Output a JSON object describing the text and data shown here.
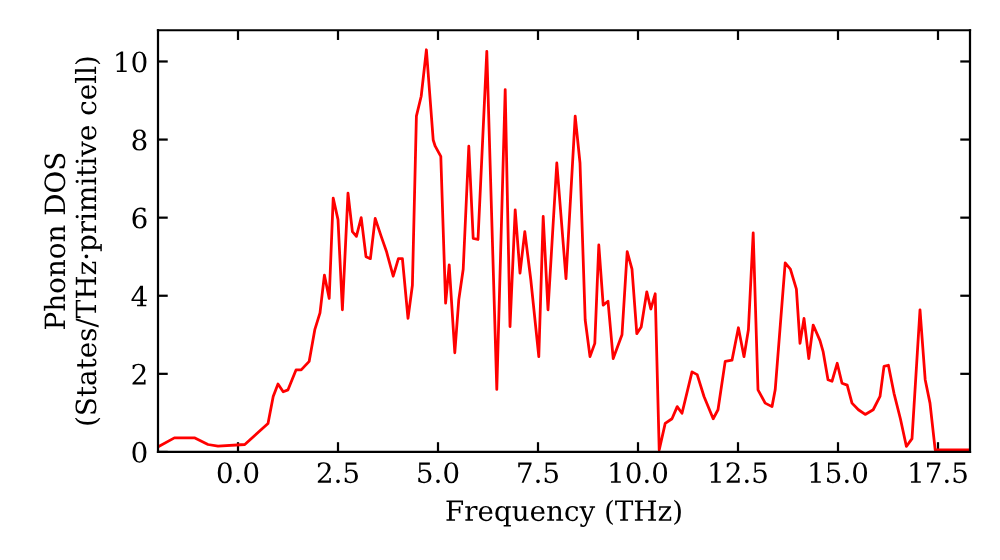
{
  "chart_data": {
    "type": "line",
    "xlabel": "Frequency (THz)",
    "ylabel": "Phonon DOS\n(States/THz·primitive cell)",
    "x": [
      -2.0,
      -1.59,
      -1.09,
      -0.75,
      -0.5,
      0.17,
      0.75,
      0.88,
      1.0,
      1.13,
      1.25,
      1.45,
      1.58,
      1.78,
      1.92,
      2.05,
      2.16,
      2.28,
      2.38,
      2.5,
      2.61,
      2.75,
      2.86,
      2.96,
      3.08,
      3.2,
      3.31,
      3.43,
      3.58,
      3.71,
      3.88,
      4.01,
      4.11,
      4.25,
      4.36,
      4.46,
      4.58,
      4.71,
      4.88,
      4.93,
      5.07,
      5.19,
      5.28,
      5.42,
      5.52,
      5.63,
      5.77,
      5.88,
      6.0,
      6.22,
      6.47,
      6.68,
      6.8,
      6.93,
      7.05,
      7.17,
      7.32,
      7.52,
      7.63,
      7.75,
      7.97,
      8.2,
      8.43,
      8.55,
      8.68,
      8.8,
      8.92,
      9.02,
      9.13,
      9.25,
      9.38,
      9.6,
      9.73,
      9.85,
      9.97,
      10.08,
      10.22,
      10.32,
      10.43,
      10.53,
      10.68,
      10.85,
      10.98,
      11.1,
      11.35,
      11.48,
      11.65,
      11.88,
      12.0,
      12.18,
      12.35,
      12.51,
      12.65,
      12.76,
      12.88,
      13.0,
      13.18,
      13.35,
      13.43,
      13.68,
      13.81,
      13.96,
      14.05,
      14.15,
      14.27,
      14.38,
      14.55,
      14.63,
      14.75,
      14.85,
      14.98,
      15.1,
      15.23,
      15.35,
      15.51,
      15.68,
      15.88,
      16.05,
      16.15,
      16.26,
      16.4,
      16.56,
      16.71,
      16.85,
      17.05,
      17.18,
      17.3,
      17.43,
      18.3
    ],
    "series": [
      {
        "color": "#ff0000",
        "values": [
          0.13,
          0.36,
          0.36,
          0.19,
          0.15,
          0.19,
          0.73,
          1.42,
          1.74,
          1.54,
          1.59,
          2.1,
          2.1,
          2.32,
          3.13,
          3.56,
          4.53,
          3.93,
          6.5,
          5.95,
          3.64,
          6.63,
          5.64,
          5.52,
          6.0,
          5.0,
          4.95,
          5.98,
          5.52,
          5.14,
          4.5,
          4.95,
          4.95,
          3.42,
          4.27,
          8.6,
          9.11,
          10.3,
          7.99,
          7.83,
          7.57,
          3.81,
          4.79,
          2.54,
          3.9,
          4.68,
          7.83,
          5.47,
          5.44,
          10.26,
          1.6,
          9.28,
          3.21,
          6.2,
          4.58,
          5.64,
          4.41,
          2.44,
          6.03,
          3.64,
          7.4,
          4.44,
          8.6,
          7.4,
          3.38,
          2.44,
          2.78,
          5.3,
          3.76,
          3.86,
          2.39,
          3.0,
          5.13,
          4.68,
          3.03,
          3.2,
          4.1,
          3.66,
          4.05,
          0.05,
          0.73,
          0.85,
          1.16,
          0.99,
          2.05,
          1.98,
          1.42,
          0.85,
          1.08,
          2.32,
          2.35,
          3.18,
          2.44,
          3.13,
          5.61,
          1.59,
          1.25,
          1.16,
          1.59,
          4.84,
          4.68,
          4.17,
          2.78,
          3.42,
          2.39,
          3.25,
          2.85,
          2.56,
          1.85,
          1.81,
          2.27,
          1.76,
          1.71,
          1.25,
          1.08,
          0.96,
          1.08,
          1.42,
          2.19,
          2.22,
          1.5,
          0.85,
          0.14,
          0.34,
          3.64,
          1.85,
          1.25,
          0.05,
          0.05
        ]
      }
    ],
    "xlim": [
      -2.0,
      18.3
    ],
    "ylim": [
      0,
      10.8
    ],
    "xticks": [
      {
        "value": 0,
        "label": "0.0"
      },
      {
        "value": 2.5,
        "label": "2.5"
      },
      {
        "value": 5,
        "label": "5.0"
      },
      {
        "value": 7.5,
        "label": "7.5"
      },
      {
        "value": 10,
        "label": "10.0"
      },
      {
        "value": 12.5,
        "label": "12.5"
      },
      {
        "value": 15,
        "label": "15.0"
      },
      {
        "value": 17.5,
        "label": "17.5"
      }
    ],
    "yticks": [
      0,
      2,
      4,
      6,
      8,
      10
    ],
    "grid": false,
    "legend": false,
    "marker": "none",
    "line_style": "solid"
  }
}
